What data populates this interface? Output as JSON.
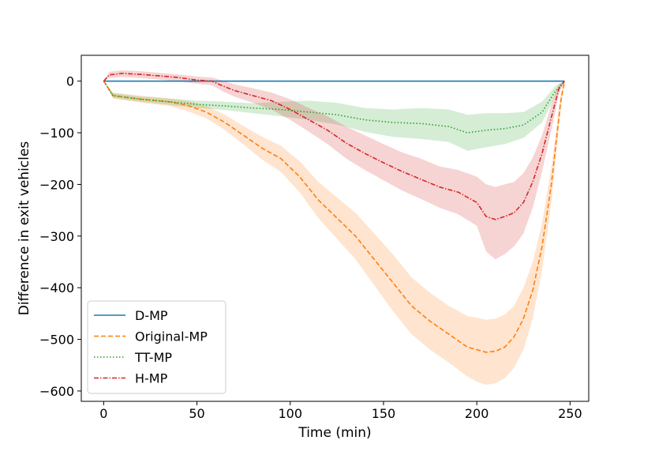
{
  "chart_data": {
    "type": "line",
    "xlabel": "Time (min)",
    "ylabel": "Difference in exit vehicles",
    "xlim": [
      -12,
      260
    ],
    "ylim": [
      -620,
      50
    ],
    "x_ticks": [
      0,
      50,
      100,
      150,
      200,
      250
    ],
    "y_ticks": [
      0,
      -100,
      -200,
      -300,
      -400,
      -500,
      -600
    ],
    "x_tick_labels": [
      "0",
      "50",
      "100",
      "150",
      "200",
      "250"
    ],
    "y_tick_labels": [
      "0",
      "−100",
      "−200",
      "−300",
      "−400",
      "−500",
      "−600"
    ],
    "grid": false,
    "legend_position": "lower-left",
    "series": [
      {
        "name": "D-MP",
        "color": "#1f77b4",
        "linestyle": "solid",
        "x": [
          0,
          247
        ],
        "y": [
          0,
          0
        ],
        "lower": [],
        "upper": []
      },
      {
        "name": "Original-MP",
        "color": "#ff7f0e",
        "linestyle": "dashed",
        "x": [
          0,
          5,
          20,
          35,
          45,
          55,
          65,
          75,
          85,
          95,
          105,
          115,
          125,
          135,
          145,
          155,
          165,
          175,
          185,
          195,
          200,
          205,
          210,
          215,
          220,
          225,
          230,
          235,
          240,
          245,
          247
        ],
        "y": [
          0,
          -28,
          -35,
          -40,
          -47,
          -60,
          -80,
          -105,
          -130,
          -150,
          -185,
          -230,
          -265,
          -300,
          -345,
          -390,
          -435,
          -465,
          -490,
          -515,
          -520,
          -525,
          -523,
          -515,
          -495,
          -460,
          -405,
          -320,
          -200,
          -40,
          0
        ],
        "lower": [
          0,
          -33,
          -42,
          -48,
          -58,
          -72,
          -95,
          -123,
          -152,
          -176,
          -215,
          -265,
          -305,
          -345,
          -395,
          -445,
          -490,
          -520,
          -545,
          -572,
          -582,
          -588,
          -585,
          -575,
          -555,
          -520,
          -460,
          -365,
          -235,
          -55,
          0
        ],
        "upper": [
          0,
          -22,
          -28,
          -33,
          -38,
          -48,
          -65,
          -87,
          -108,
          -125,
          -155,
          -195,
          -225,
          -255,
          -295,
          -335,
          -380,
          -410,
          -435,
          -455,
          -458,
          -462,
          -460,
          -452,
          -435,
          -400,
          -350,
          -275,
          -165,
          -25,
          0
        ]
      },
      {
        "name": "TT-MP",
        "color": "#2ca02c",
        "linestyle": "dotted",
        "x": [
          0,
          5,
          20,
          35,
          50,
          65,
          80,
          95,
          110,
          125,
          140,
          155,
          170,
          185,
          195,
          205,
          215,
          225,
          235,
          242,
          247
        ],
        "y": [
          0,
          -28,
          -35,
          -40,
          -45,
          -48,
          -52,
          -55,
          -60,
          -65,
          -75,
          -80,
          -82,
          -88,
          -100,
          -95,
          -92,
          -85,
          -60,
          -20,
          0
        ],
        "lower": [
          0,
          -33,
          -40,
          -46,
          -52,
          -56,
          -62,
          -68,
          -75,
          -84,
          -98,
          -108,
          -112,
          -118,
          -135,
          -128,
          -122,
          -110,
          -80,
          -30,
          0
        ],
        "upper": [
          0,
          -23,
          -30,
          -34,
          -38,
          -40,
          -43,
          -40,
          -38,
          -42,
          -52,
          -55,
          -52,
          -55,
          -65,
          -62,
          -62,
          -60,
          -40,
          -10,
          0
        ]
      },
      {
        "name": "H-MP",
        "color": "#d62728",
        "linestyle": "dashdot",
        "x": [
          0,
          3,
          10,
          20,
          30,
          40,
          50,
          58,
          63,
          70,
          80,
          90,
          100,
          110,
          120,
          130,
          140,
          150,
          160,
          170,
          180,
          190,
          200,
          205,
          210,
          215,
          220,
          225,
          230,
          235,
          240,
          244,
          247
        ],
        "y": [
          0,
          12,
          15,
          13,
          10,
          7,
          2,
          0,
          -8,
          -18,
          -28,
          -38,
          -55,
          -75,
          -95,
          -120,
          -140,
          -158,
          -175,
          -190,
          -205,
          -215,
          -235,
          -262,
          -268,
          -262,
          -255,
          -235,
          -195,
          -140,
          -70,
          -15,
          0
        ],
        "lower": [
          0,
          6,
          8,
          6,
          3,
          0,
          -5,
          -8,
          -18,
          -30,
          -42,
          -55,
          -75,
          -98,
          -122,
          -150,
          -172,
          -192,
          -212,
          -228,
          -245,
          -258,
          -280,
          -330,
          -345,
          -335,
          -320,
          -295,
          -245,
          -175,
          -95,
          -25,
          0
        ],
        "upper": [
          0,
          18,
          21,
          19,
          16,
          13,
          9,
          7,
          2,
          -6,
          -14,
          -22,
          -35,
          -52,
          -68,
          -88,
          -105,
          -122,
          -138,
          -150,
          -165,
          -172,
          -185,
          -200,
          -205,
          -200,
          -195,
          -178,
          -148,
          -105,
          -45,
          -5,
          0
        ]
      }
    ]
  }
}
